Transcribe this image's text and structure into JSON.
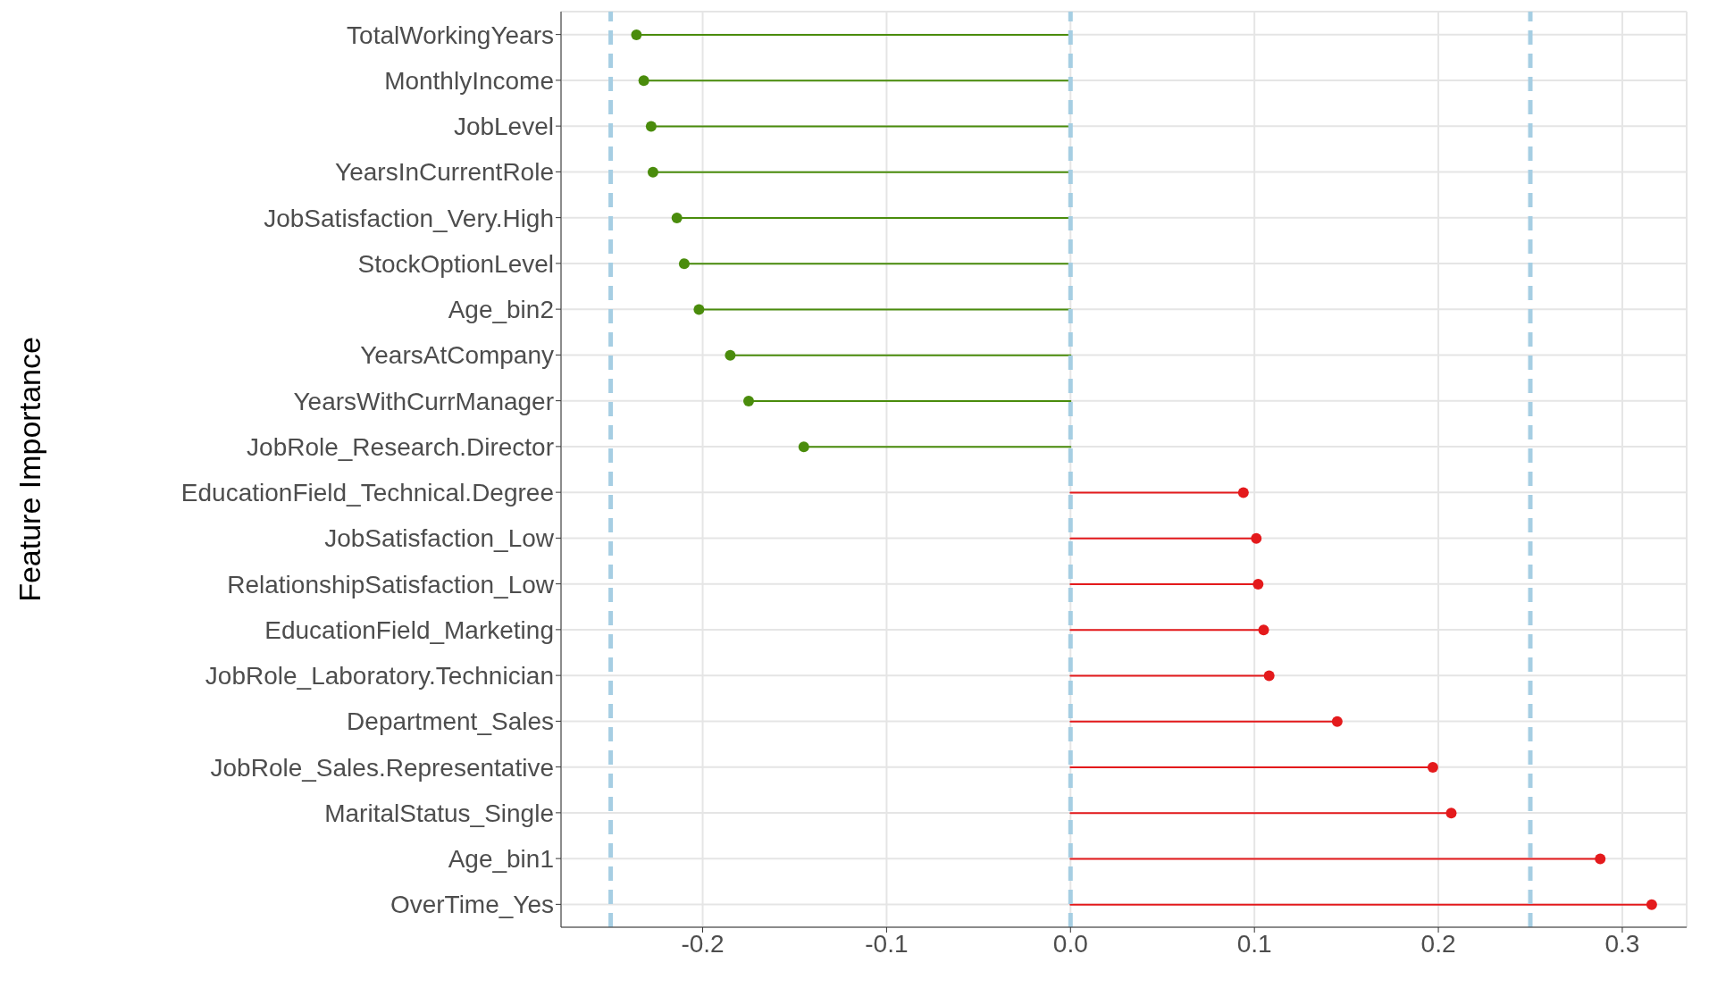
{
  "chart_data": {
    "type": "lollipop",
    "orientation": "horizontal",
    "ylabel": "Feature Importance",
    "categories": [
      "TotalWorkingYears",
      "MonthlyIncome",
      "JobLevel",
      "YearsInCurrentRole",
      "JobSatisfaction_Very.High",
      "StockOptionLevel",
      "Age_bin2",
      "YearsAtCompany",
      "YearsWithCurrManager",
      "JobRole_Research.Director",
      "EducationField_Technical.Degree",
      "JobSatisfaction_Low",
      "RelationshipSatisfaction_Low",
      "EducationField_Marketing",
      "JobRole_Laboratory.Technician",
      "Department_Sales",
      "JobRole_Sales.Representative",
      "MaritalStatus_Single",
      "Age_bin1",
      "OverTime_Yes"
    ],
    "values": [
      -0.236,
      -0.232,
      -0.228,
      -0.227,
      -0.214,
      -0.21,
      -0.202,
      -0.185,
      -0.175,
      -0.145,
      0.094,
      0.101,
      0.102,
      0.105,
      0.108,
      0.145,
      0.197,
      0.207,
      0.288,
      0.316
    ],
    "colors": [
      "#4a8c0c",
      "#4a8c0c",
      "#4a8c0c",
      "#4a8c0c",
      "#4a8c0c",
      "#4a8c0c",
      "#4a8c0c",
      "#4a8c0c",
      "#4a8c0c",
      "#4a8c0c",
      "#e41a1c",
      "#e41a1c",
      "#e41a1c",
      "#e41a1c",
      "#e41a1c",
      "#e41a1c",
      "#e41a1c",
      "#e41a1c",
      "#e41a1c",
      "#e41a1c"
    ],
    "xlim": [
      -0.277,
      0.335
    ],
    "xticks": [
      -0.2,
      -0.1,
      {
        "value": 0,
        "label": "0.0"
      },
      0.1,
      0.2,
      0.3
    ],
    "ref_lines": [
      {
        "axis": "x",
        "value": -0.25,
        "color": "#a6cee3",
        "line_style": "dashed"
      },
      {
        "axis": "x",
        "value": 0,
        "color": "#a6cee3",
        "line_style": "dashed"
      },
      {
        "axis": "x",
        "value": 0.25,
        "color": "#a6cee3",
        "line_style": "dashed"
      }
    ],
    "grid": true,
    "marker": "circle"
  }
}
